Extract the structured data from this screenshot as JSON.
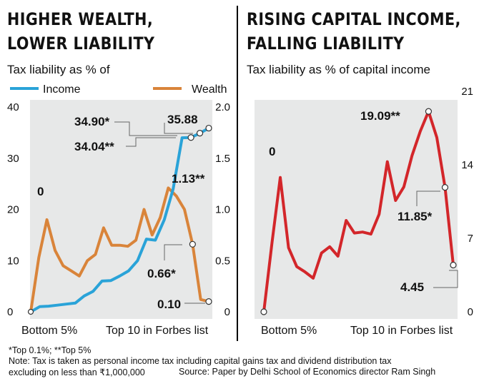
{
  "left_panel": {
    "title_lines": [
      "HIGHER WEALTH,",
      "LOWER LIABILITY"
    ],
    "subtitle": "Tax liability as % of"
  },
  "right_panel": {
    "title_lines": [
      "RISING CAPITAL INCOME,",
      "FALLING LIABILITY"
    ],
    "subtitle": "Tax liability as % of capital income"
  },
  "footer": {
    "footnote": "*Top 0.1%; **Top 5%",
    "note": "Note: Tax is taken as personal income tax including capital gains tax and dividend distribution tax",
    "note2": "excluding on less than ₹1,000,000",
    "source": "Source: Paper by Delhi School of Economics director Ram Singh"
  },
  "colors": {
    "income": "#2aa3d8",
    "wealth": "#d9843a",
    "capital_income": "#d3262a",
    "panel_bg": "#e7e8e8",
    "marker_fill": "#ffffff"
  },
  "chart_data": [
    {
      "type": "line",
      "title": "HIGHER WEALTH, LOWER LIABILITY",
      "subtitle": "Tax liability as % of",
      "x_tick_labels": [
        "Bottom 5%",
        "Top 10 in Forbes list"
      ],
      "yleft": {
        "ticks": [
          "0",
          "10",
          "20",
          "30",
          "40"
        ],
        "lim": [
          0,
          40
        ]
      },
      "yright": {
        "ticks": [
          "0",
          "0.5",
          "1.0",
          "1.5",
          "2.0"
        ],
        "lim": [
          0,
          2.0
        ]
      },
      "legend": [
        "Income",
        "Wealth"
      ],
      "series": [
        {
          "name": "Income",
          "axis": "left",
          "values": [
            0,
            1,
            1.1,
            1.3,
            1.5,
            1.7,
            3.1,
            4,
            6,
            6.1,
            7,
            8,
            10,
            14.2,
            14,
            18,
            24,
            34,
            34.04,
            34.9,
            35.88
          ]
        },
        {
          "name": "Wealth",
          "axis": "right",
          "values": [
            0,
            0.53,
            0.9,
            0.6,
            0.45,
            0.4,
            0.35,
            0.5,
            0.56,
            0.82,
            0.65,
            0.65,
            0.64,
            0.7,
            1.0,
            0.75,
            0.92,
            1.21,
            1.13,
            1.0,
            0.66,
            0.12,
            0.1
          ]
        }
      ],
      "annotations": [
        {
          "text": "0",
          "series": "Wealth",
          "index": 0
        },
        {
          "text": "34.90*",
          "series": "Income",
          "index": 19
        },
        {
          "text": "34.04**",
          "series": "Income",
          "index": 18
        },
        {
          "text": "35.88",
          "series": "Income",
          "index": 20
        },
        {
          "text": "1.13**",
          "series": "Wealth",
          "index": 18
        },
        {
          "text": "0.66*",
          "series": "Wealth",
          "index": 20
        },
        {
          "text": "0.10",
          "series": "Wealth",
          "index": 22
        }
      ]
    },
    {
      "type": "line",
      "title": "RISING CAPITAL INCOME, FALLING LIABILITY",
      "subtitle": "Tax liability as % of capital income",
      "x_tick_labels": [
        "Bottom 5%",
        "Top 10 in Forbes list"
      ],
      "yright": {
        "ticks": [
          "0",
          "7",
          "14",
          "21"
        ],
        "lim": [
          0,
          21
        ]
      },
      "series": [
        {
          "name": "Capital income",
          "values": [
            0,
            6.6,
            12.8,
            6.1,
            4.3,
            3.8,
            3.2,
            5.6,
            6.2,
            5.3,
            8.7,
            7.5,
            7.6,
            7.4,
            9.3,
            14.3,
            10.6,
            11.9,
            14.9,
            17.2,
            19.09,
            16.6,
            11.85,
            4.45
          ]
        }
      ],
      "annotations": [
        {
          "text": "0",
          "index": 0
        },
        {
          "text": "19.09**",
          "index": 20
        },
        {
          "text": "11.85*",
          "index": 22
        },
        {
          "text": "4.45",
          "index": 23
        }
      ]
    }
  ]
}
